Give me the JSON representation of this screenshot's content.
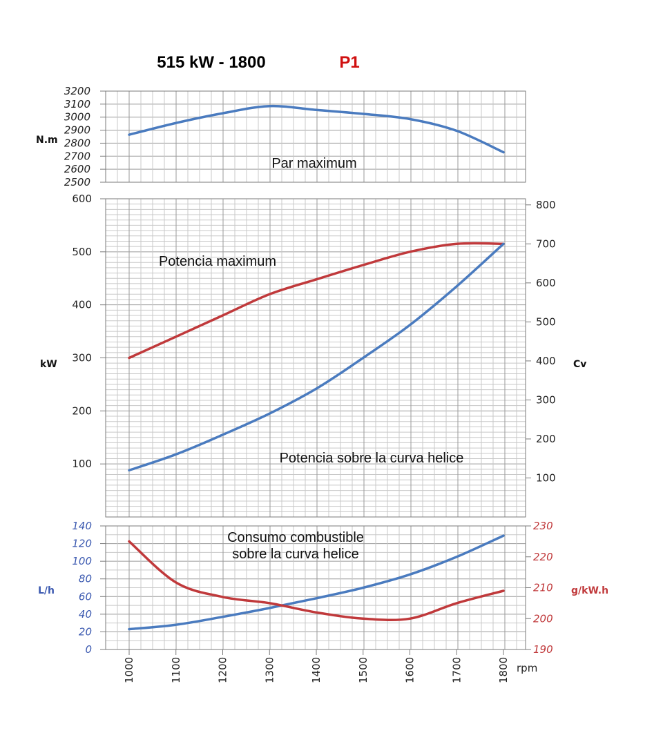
{
  "header": {
    "title": "515 kW - 1800",
    "code": "P1"
  },
  "colors": {
    "blue": "#4a7bbf",
    "red": "#c0393b",
    "axis_blue": "#3b59b0",
    "axis_red": "#c0393b",
    "title_red": "#d01010"
  },
  "chart_data": [
    {
      "type": "line",
      "panel": "torque",
      "annotation": "Par maximum",
      "ylabel": "N.m",
      "ylim": [
        2500,
        3200
      ],
      "y_ticks": [
        "2500",
        "2600",
        "2700",
        "2800",
        "2900",
        "3000",
        "3100",
        "3200"
      ],
      "x": [
        1000,
        1100,
        1200,
        1300,
        1400,
        1500,
        1600,
        1700,
        1800
      ],
      "series": [
        {
          "color": "blue",
          "values": [
            2865,
            2955,
            3030,
            3085,
            3055,
            3025,
            2985,
            2895,
            2730
          ]
        }
      ]
    },
    {
      "type": "line",
      "panel": "power",
      "annotations": [
        "Potencia maximum",
        "Potencia sobre la curva helice"
      ],
      "ylabel_left": "kW",
      "ylabel_right": "Cv",
      "ylim_left": [
        0,
        600
      ],
      "ylim_right": [
        0,
        815.6
      ],
      "y_ticks_left": [
        "100",
        "200",
        "300",
        "400",
        "500",
        "600"
      ],
      "y_ticks_right": [
        "100",
        "200",
        "300",
        "400",
        "500",
        "600",
        "700",
        "800"
      ],
      "x": [
        1000,
        1100,
        1200,
        1300,
        1400,
        1500,
        1600,
        1700,
        1800
      ],
      "series": [
        {
          "color": "red",
          "values": [
            300,
            340,
            380,
            420,
            448,
            475,
            500,
            515,
            515
          ]
        },
        {
          "color": "blue",
          "values": [
            88,
            118,
            155,
            195,
            242,
            300,
            362,
            435,
            515
          ]
        }
      ]
    },
    {
      "type": "line",
      "panel": "consumption",
      "annotation_lines": [
        "Consumo combustible",
        "sobre la curva helice"
      ],
      "ylabel_left": "L/h",
      "ylabel_right": "g/kW.h",
      "ylim_left": [
        0,
        140
      ],
      "ylim_right": [
        190,
        230
      ],
      "y_ticks_left": [
        "0",
        "20",
        "40",
        "60",
        "80",
        "100",
        "120",
        "140"
      ],
      "y_ticks_right": [
        "190",
        "200",
        "210",
        "220",
        "230"
      ],
      "x": [
        1000,
        1100,
        1200,
        1300,
        1400,
        1500,
        1600,
        1700,
        1800
      ],
      "x_ticks": [
        "1000",
        "1100",
        "1200",
        "1300",
        "1400",
        "1500",
        "1600",
        "1700",
        "1800"
      ],
      "xlabel": "rpm",
      "series": [
        {
          "color": "blue",
          "axis": "left",
          "values": [
            23,
            28,
            37,
            47,
            58,
            70,
            85,
            105,
            129
          ]
        },
        {
          "color": "red",
          "axis": "right",
          "values": [
            225,
            211.7,
            207,
            205,
            202,
            200,
            200,
            205,
            209
          ]
        }
      ]
    }
  ]
}
